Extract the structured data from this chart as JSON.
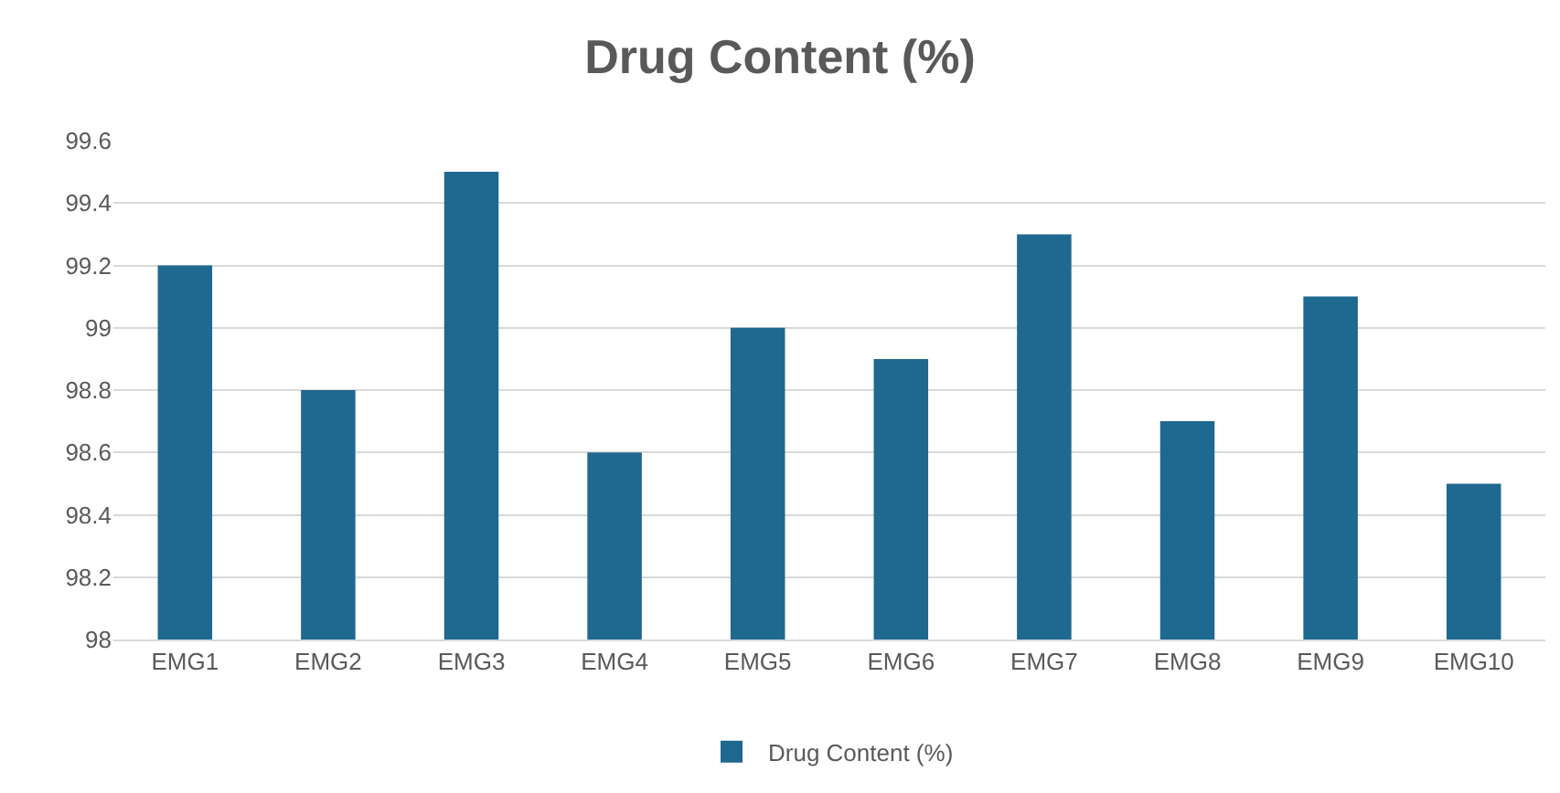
{
  "chart_data": {
    "type": "bar",
    "title": "Drug Content (%)",
    "categories": [
      "EMG1",
      "EMG2",
      "EMG3",
      "EMG4",
      "EMG5",
      "EMG6",
      "EMG7",
      "EMG8",
      "EMG9",
      "EMG10"
    ],
    "series": [
      {
        "name": "Drug Content (%)",
        "color": "#1f6890",
        "values": [
          99.2,
          98.8,
          99.5,
          98.6,
          99.0,
          98.9,
          99.3,
          98.7,
          99.1,
          98.5
        ]
      }
    ],
    "ylim": [
      98,
      99.6
    ],
    "yticks": [
      98,
      98.2,
      98.4,
      98.6,
      98.8,
      99,
      99.2,
      99.4,
      99.6
    ],
    "grid": "y",
    "legend": "bottom"
  }
}
